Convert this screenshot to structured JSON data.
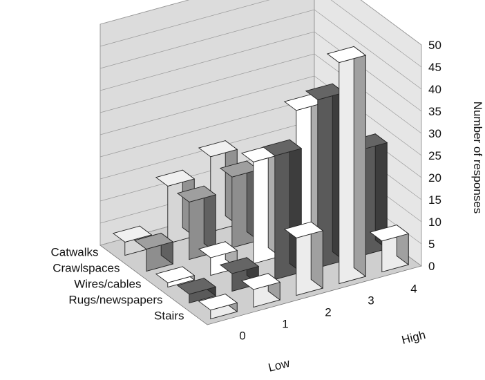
{
  "chart_data": {
    "type": "bar",
    "title": "",
    "x_tick_labels": [
      "0",
      "1",
      "2",
      "3",
      "4"
    ],
    "x_end_labels": {
      "low": "Low",
      "high": "High"
    },
    "categories": [
      "Stairs",
      "Rugs/newspapers",
      "Wires/cables",
      "Crawlspaces",
      "Catwalks"
    ],
    "ylabel": "Number of responses",
    "ylim": [
      0,
      50
    ],
    "yticks": [
      0,
      5,
      10,
      15,
      20,
      25,
      30,
      35,
      40,
      45,
      50
    ],
    "grid": true,
    "series": [
      {
        "name": "Stairs",
        "color": "#ececec",
        "values": [
          2,
          4,
          13,
          50,
          7
        ]
      },
      {
        "name": "Rugs/newspapers",
        "color": "#5a5a5a",
        "values": [
          2,
          4,
          28,
          38,
          24
        ]
      },
      {
        "name": "Wires/cables",
        "color": "#ffffff",
        "values": [
          1,
          4,
          23,
          32,
          7
        ]
      },
      {
        "name": "Crawlspaces",
        "color": "#8e8e8e",
        "values": [
          5,
          13,
          16,
          12,
          23
        ]
      },
      {
        "name": "Catwalks",
        "color": "#d6d6d6",
        "values": [
          3,
          13,
          17,
          6,
          8
        ]
      }
    ]
  }
}
